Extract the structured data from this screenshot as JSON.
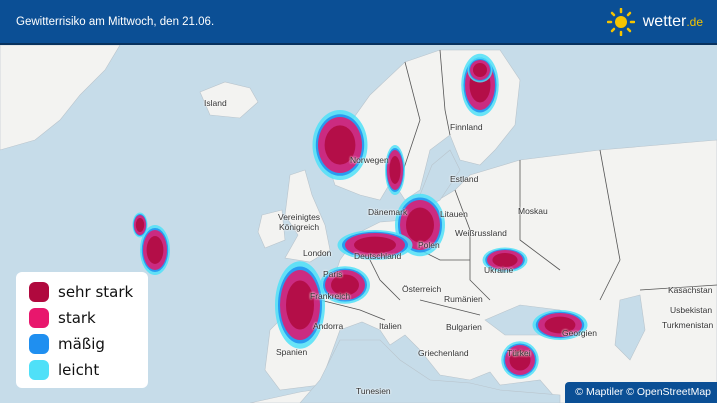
{
  "header": {
    "title_bold": "Gewitterrisiko am Mittwoch",
    "title_rest": ", den 21.06.",
    "brand": "wetter",
    "brand_tld": ".de",
    "logo_icon": "sun-icon"
  },
  "colors": {
    "header": "#0b4f95",
    "sea": "#c6dce9",
    "land": "#f3f3f1",
    "sehr_stark": "#b0093e",
    "stark": "#e8176d",
    "maessig": "#1f8ff0",
    "leicht": "#4fe0f8"
  },
  "legend": [
    {
      "label": "sehr stark",
      "color": "#b0093e"
    },
    {
      "label": "stark",
      "color": "#e8176d"
    },
    {
      "label": "mäßig",
      "color": "#1f8ff0"
    },
    {
      "label": "leicht",
      "color": "#4fe0f8"
    }
  ],
  "labels": {
    "island": "Island",
    "finnland": "Finnland",
    "norwegen": "Norwegen",
    "estland": "Estland",
    "moskau": "Moskau",
    "daenemark": "Dänemark",
    "litauen": "Litauen",
    "uk1": "Vereinigtes",
    "uk2": "Königreich",
    "weissrussland": "Weißrussland",
    "polen": "Polen",
    "london": "London",
    "deutschland": "Deutschland",
    "ukraine": "Ukraine",
    "kasachstan": "Kasachstan",
    "paris": "Paris",
    "frankreich": "Frankreich",
    "oesterreich": "Österreich",
    "rumaenien": "Rumänien",
    "usbekistan": "Usbekistan",
    "andorra": "Andorra",
    "italien": "Italien",
    "bulgarien": "Bulgarien",
    "georgien": "Georgien",
    "turkmenistan": "Turkmenistan",
    "spanien": "Spanien",
    "griechenland": "Griechenland",
    "tuerkei": "Türkei",
    "tunesien": "Tunesien"
  },
  "attribution": "© Maptiler © OpenStreetMap"
}
